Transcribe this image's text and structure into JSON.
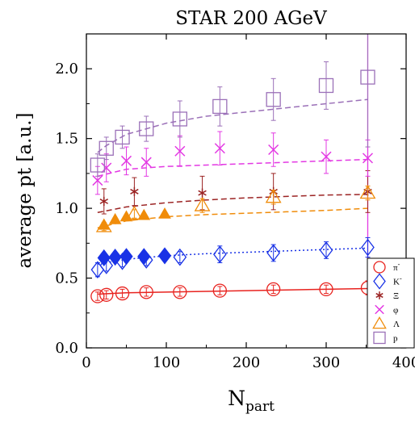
{
  "chart_data": {
    "type": "scatter",
    "title": "STAR 200 AGeV",
    "xlabel": "N",
    "xlabel_subscript": "part",
    "ylabel": "average pt [a.u.]",
    "xlim": [
      0,
      400
    ],
    "ylim": [
      0,
      2.25
    ],
    "xticks": [
      0,
      100,
      200,
      300,
      400
    ],
    "xtick_labels": [
      "0",
      "100",
      "200",
      "300",
      "400"
    ],
    "yticks": [
      0,
      0.5,
      1.0,
      1.5,
      2.0
    ],
    "ytick_labels": [
      "0.0",
      "0.5",
      "1.0",
      "1.5",
      "2.0"
    ],
    "grid": false,
    "legend_position": "bottom-right",
    "series": [
      {
        "name": "π",
        "name_sup": "-",
        "color": "#e8231f",
        "marker": "circle-open",
        "x": [
          14,
          25,
          45,
          75,
          117,
          167,
          234,
          300,
          352
        ],
        "y": [
          0.37,
          0.38,
          0.39,
          0.4,
          0.4,
          0.41,
          0.42,
          0.42,
          0.43
        ],
        "err": [
          0.03,
          0.03,
          0.03,
          0.03,
          0.03,
          0.03,
          0.03,
          0.03,
          0.05
        ],
        "curve": {
          "style": "solid",
          "x": [
            14,
            50,
            100,
            150,
            200,
            250,
            300,
            352
          ],
          "y": [
            0.385,
            0.395,
            0.4,
            0.405,
            0.41,
            0.415,
            0.42,
            0.425
          ]
        }
      },
      {
        "name": "K",
        "name_sup": "-",
        "color": "#1932e6",
        "marker": "diamond-open",
        "x": [
          14,
          25,
          45,
          75,
          117,
          167,
          234,
          300,
          352
        ],
        "y": [
          0.56,
          0.59,
          0.62,
          0.63,
          0.65,
          0.67,
          0.68,
          0.7,
          0.72
        ],
        "err": [
          0.05,
          0.04,
          0.04,
          0.04,
          0.04,
          0.06,
          0.06,
          0.06,
          0.07
        ],
        "curve": {
          "style": "dotted",
          "x": [
            14,
            50,
            100,
            150,
            200,
            250,
            300,
            352
          ],
          "y": [
            0.6,
            0.635,
            0.66,
            0.675,
            0.685,
            0.695,
            0.705,
            0.715
          ]
        }
      },
      {
        "name": "K (filled)",
        "color": "#1932e6",
        "marker": "diamond-filled",
        "show_in_legend": false,
        "x": [
          22,
          36,
          50,
          72,
          98
        ],
        "y": [
          0.645,
          0.65,
          0.655,
          0.655,
          0.66
        ],
        "err": [
          0,
          0,
          0,
          0,
          0
        ]
      },
      {
        "name": "Ξ",
        "color": "#9b2323",
        "marker": "star",
        "x": [
          22,
          60,
          145,
          234,
          352
        ],
        "y": [
          1.05,
          1.12,
          1.11,
          1.12,
          1.12
        ],
        "err": [
          0.09,
          0.1,
          0.12,
          0.13,
          0.15
        ],
        "curve": {
          "style": "dashed",
          "x": [
            14,
            50,
            100,
            150,
            200,
            250,
            300,
            352
          ],
          "y": [
            0.97,
            1.01,
            1.04,
            1.06,
            1.075,
            1.085,
            1.095,
            1.1
          ]
        }
      },
      {
        "name": "φ",
        "color": "#e339e3",
        "marker": "cross",
        "x": [
          14,
          25,
          50,
          75,
          117,
          167,
          234,
          300,
          352
        ],
        "y": [
          1.2,
          1.29,
          1.34,
          1.33,
          1.41,
          1.43,
          1.42,
          1.37,
          1.36
        ],
        "err": [
          0.1,
          0.1,
          0.1,
          0.1,
          0.11,
          0.12,
          0.12,
          0.12,
          0.13
        ],
        "curve": {
          "style": "dashed",
          "x": [
            14,
            50,
            100,
            150,
            200,
            250,
            300,
            352
          ],
          "y": [
            1.23,
            1.28,
            1.3,
            1.31,
            1.32,
            1.33,
            1.34,
            1.35
          ]
        }
      },
      {
        "name": "Λ",
        "color": "#f08c0a",
        "marker": "triangle-open",
        "x": [
          22,
          60,
          145,
          234,
          352
        ],
        "y": [
          0.87,
          0.96,
          1.02,
          1.08,
          1.11
        ],
        "err": [
          0.03,
          0.03,
          0.05,
          0.05,
          0.05
        ],
        "curve": {
          "style": "dashed",
          "x": [
            14,
            50,
            100,
            150,
            200,
            250,
            300,
            352
          ],
          "y": [
            0.86,
            0.91,
            0.94,
            0.955,
            0.965,
            0.975,
            0.985,
            1.0
          ]
        }
      },
      {
        "name": "Λ (filled)",
        "color": "#f08c0a",
        "marker": "triangle-filled",
        "show_in_legend": false,
        "x": [
          22,
          36,
          50,
          72,
          98
        ],
        "y": [
          0.88,
          0.92,
          0.94,
          0.95,
          0.96
        ],
        "err": [
          0,
          0,
          0,
          0,
          0
        ]
      },
      {
        "name": "p",
        "color": "#9b70b8",
        "marker": "square-open",
        "x": [
          14,
          25,
          45,
          75,
          117,
          167,
          234,
          300,
          352
        ],
        "y": [
          1.31,
          1.43,
          1.51,
          1.57,
          1.64,
          1.73,
          1.78,
          1.88,
          1.94
        ],
        "err": [
          0.08,
          0.08,
          0.08,
          0.09,
          0.13,
          0.14,
          0.15,
          0.17,
          0.5
        ],
        "curve": {
          "style": "dashed",
          "x": [
            14,
            25,
            50,
            100,
            150,
            200,
            250,
            300,
            352
          ],
          "y": [
            1.4,
            1.45,
            1.53,
            1.61,
            1.66,
            1.69,
            1.72,
            1.75,
            1.78
          ]
        }
      }
    ],
    "annotations": [
      {
        "type": "vertical-line",
        "x": 352,
        "color": "#e339e3"
      }
    ]
  }
}
